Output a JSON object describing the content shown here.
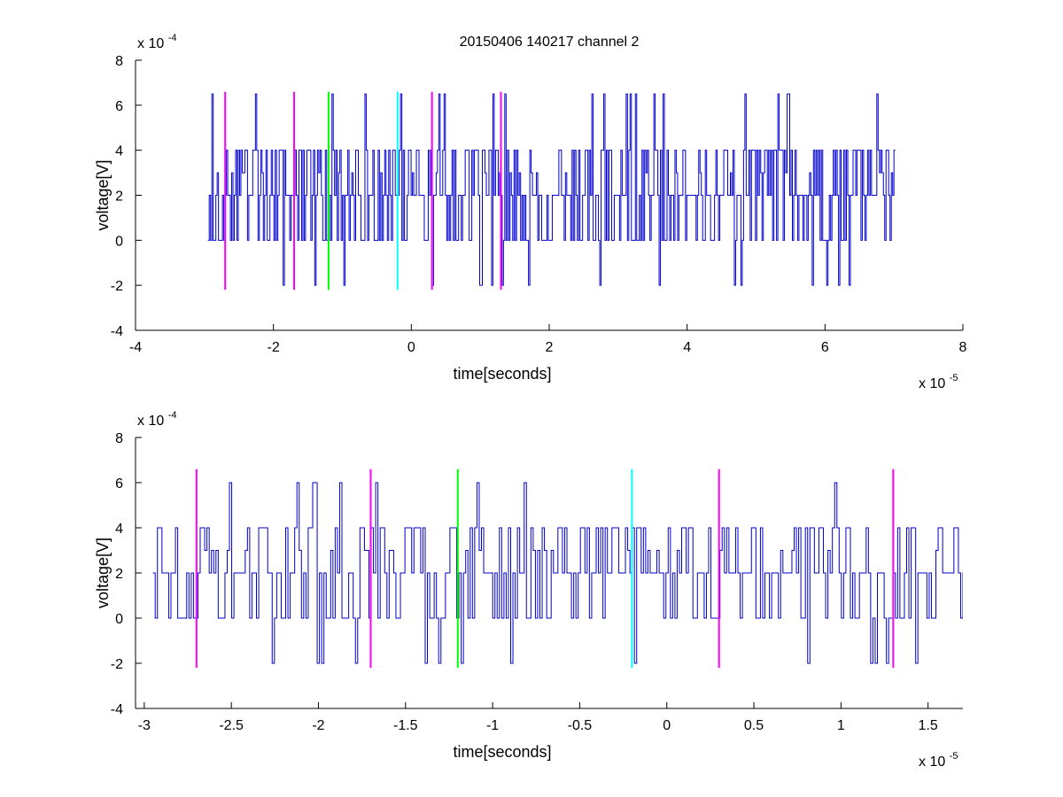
{
  "title": "20150406 140217 channel 2",
  "colors": {
    "signal": "#0000cc",
    "marker_magenta": "#ff00ff",
    "marker_green": "#00ff00",
    "marker_cyan": "#00ffff",
    "axes": "#000000",
    "background": "#ffffff"
  },
  "chart_data": [
    {
      "type": "line",
      "title": "20150406 140217 channel 2",
      "xlabel": "time[seconds]",
      "ylabel": "voltage[V]",
      "x_exponent_label": "x 10",
      "x_exponent": "-5",
      "y_exponent_label": "x 10",
      "y_exponent": "-4",
      "xlim": [
        -4e-05,
        8e-05
      ],
      "ylim": [
        -0.0004,
        0.0008
      ],
      "x_ticks": [
        -4,
        -2,
        0,
        2,
        4,
        6,
        8
      ],
      "x_tick_labels": [
        "-4",
        "-2",
        "0",
        "2",
        "4",
        "6",
        "8"
      ],
      "y_ticks": [
        -4,
        -2,
        0,
        2,
        4,
        6,
        8
      ],
      "y_tick_labels": [
        "-4",
        "-2",
        "0",
        "2",
        "4",
        "6",
        "8"
      ],
      "grid": false,
      "series": [
        {
          "color": "#0000cc",
          "x_range": [
            -2.95e-05,
            7e-05
          ],
          "levels": [
            0.0,
            0.0002,
            0.0004
          ],
          "min": -0.0002,
          "max": 0.00065
        }
      ],
      "vertical_markers": [
        {
          "x": -2.7e-05,
          "color": "magenta",
          "y_range": [
            -0.00022,
            0.00066
          ]
        },
        {
          "x": -1.7e-05,
          "color": "magenta",
          "y_range": [
            -0.00022,
            0.00066
          ]
        },
        {
          "x": -1.2e-05,
          "color": "green",
          "y_range": [
            -0.00022,
            0.00066
          ]
        },
        {
          "x": -2e-06,
          "color": "cyan",
          "y_range": [
            -0.00022,
            0.00066
          ]
        },
        {
          "x": 3e-06,
          "color": "magenta",
          "y_range": [
            -0.00022,
            0.00066
          ]
        },
        {
          "x": 1.3e-05,
          "color": "magenta",
          "y_range": [
            -0.00022,
            0.00066
          ]
        }
      ]
    },
    {
      "type": "line",
      "title": "",
      "xlabel": "time[seconds]",
      "ylabel": "voltage[V]",
      "x_exponent_label": "x 10",
      "x_exponent": "-5",
      "y_exponent_label": "x 10",
      "y_exponent": "-4",
      "xlim": [
        -3.05e-05,
        1.7e-05
      ],
      "ylim": [
        -0.0004,
        0.0008
      ],
      "x_ticks": [
        -3,
        -2.5,
        -2,
        -1.5,
        -1,
        -0.5,
        0,
        0.5,
        1,
        1.5
      ],
      "x_tick_labels": [
        "-3",
        "-2.5",
        "-2",
        "-1.5",
        "-1",
        "-0.5",
        "0",
        "0.5",
        "1",
        "1.5"
      ],
      "y_ticks": [
        -4,
        -2,
        0,
        2,
        4,
        6,
        8
      ],
      "y_tick_labels": [
        "-4",
        "-2",
        "0",
        "2",
        "4",
        "6",
        "8"
      ],
      "grid": false,
      "series": [
        {
          "color": "#0000cc",
          "x_range": [
            -2.95e-05,
            1.7e-05
          ],
          "levels": [
            0.0,
            0.0002,
            0.0004
          ],
          "min": -0.0002,
          "max": 0.0006
        }
      ],
      "vertical_markers": [
        {
          "x": -2.7e-05,
          "color": "magenta",
          "y_range": [
            -0.00022,
            0.00066
          ]
        },
        {
          "x": -1.7e-05,
          "color": "magenta",
          "y_range": [
            -0.00022,
            0.00066
          ]
        },
        {
          "x": -1.2e-05,
          "color": "green",
          "y_range": [
            -0.00022,
            0.00066
          ]
        },
        {
          "x": -2e-06,
          "color": "cyan",
          "y_range": [
            -0.00022,
            0.00066
          ]
        },
        {
          "x": 3e-06,
          "color": "magenta",
          "y_range": [
            -0.00022,
            0.00066
          ]
        },
        {
          "x": 1.3e-05,
          "color": "magenta",
          "y_range": [
            -0.00022,
            0.00066
          ]
        }
      ]
    }
  ]
}
